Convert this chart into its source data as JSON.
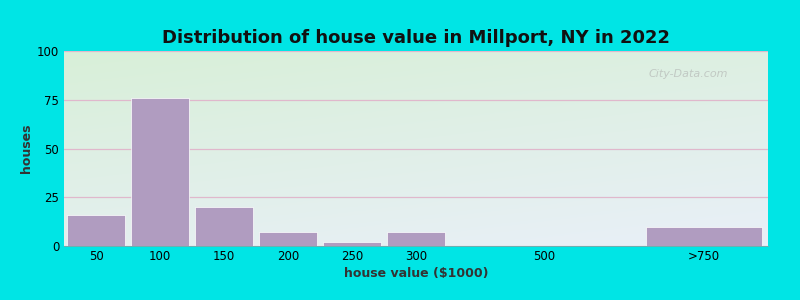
{
  "title": "Distribution of house value in Millport, NY in 2022",
  "xlabel": "house value ($1000)",
  "ylabel": "houses",
  "bar_color": "#b09cc0",
  "bar_edgecolor": "#ffffff",
  "background_outer": "#00e5e5",
  "bg_color_topleft": "#d8f0d8",
  "bg_color_bottomright": "#e8f0f8",
  "ylim": [
    0,
    100
  ],
  "yticks": [
    0,
    25,
    50,
    75,
    100
  ],
  "categories": [
    "50",
    "100",
    "150",
    "200",
    "250",
    "300",
    "500",
    ">750"
  ],
  "values": [
    16,
    76,
    20,
    7,
    2,
    7,
    0,
    10
  ],
  "grid_color": "#e0b8cc",
  "watermark": "City-Data.com",
  "title_fontsize": 13,
  "axis_label_fontsize": 9,
  "tick_fontsize": 8.5
}
